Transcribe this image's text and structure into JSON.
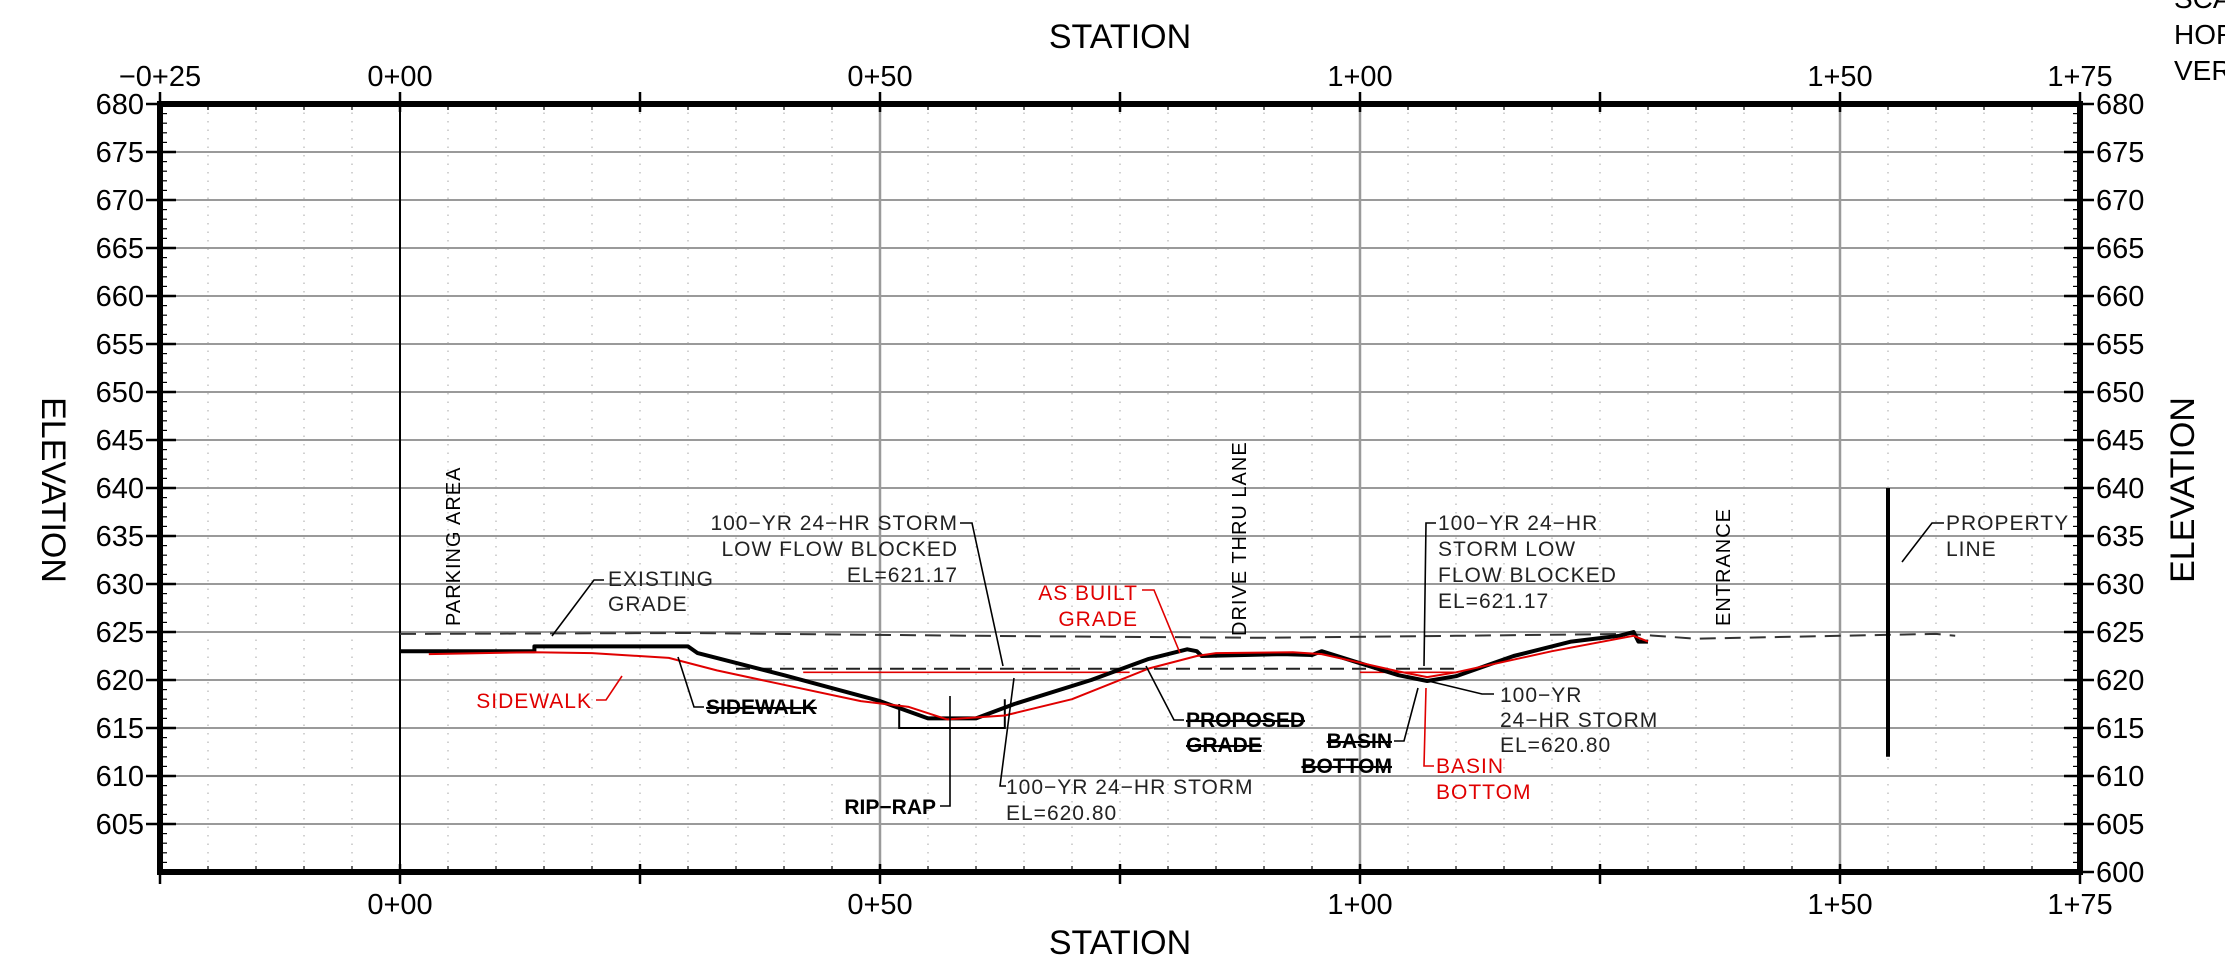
{
  "axes": {
    "station_title_top": "STATION",
    "station_title_bottom": "STATION",
    "elevation_title_left": "ELEVATION",
    "elevation_title_right": "ELEVATION",
    "top_station_ticks": [
      "−0+25",
      "0+00",
      "0+50",
      "1+00",
      "1+50",
      "1+75"
    ],
    "bottom_station_ticks": [
      "0+00",
      "0+50",
      "1+00",
      "1+50",
      "1+75"
    ],
    "left_elev_ticks": [
      "680",
      "675",
      "670",
      "665",
      "660",
      "655",
      "650",
      "645",
      "640",
      "635",
      "630",
      "625",
      "620",
      "615",
      "610",
      "605"
    ],
    "right_elev_ticks": [
      "680",
      "675",
      "670",
      "665",
      "660",
      "655",
      "650",
      "645",
      "640",
      "635",
      "630",
      "625",
      "620",
      "615",
      "610",
      "605",
      "600"
    ],
    "station_range": [
      -25,
      175
    ],
    "elevation_range": [
      600,
      680
    ]
  },
  "scale_note": [
    "SCA",
    "HOR",
    "VER"
  ],
  "vertical_labels": {
    "parking_area": "PARKING AREA",
    "drive_thru_lane": "DRIVE THRU LANE",
    "entrance": "ENTRANCE"
  },
  "callouts": {
    "existing_grade": [
      "EXISTING",
      "GRADE"
    ],
    "storm_blocked_left": [
      "100−YR 24−HR STORM",
      "LOW FLOW BLOCKED",
      "EL=621.17"
    ],
    "storm_blocked_right": [
      "100−YR 24−HR",
      "STORM LOW",
      "FLOW BLOCKED",
      "EL=621.17"
    ],
    "as_built_grade": [
      "AS BUILT",
      "GRADE"
    ],
    "property_line": [
      "PROPERTY",
      "LINE"
    ],
    "sidewalk_red": "SIDEWALK",
    "sidewalk_black": "SIDEWALK",
    "proposed_grade": [
      "PROPOSED",
      "GRADE"
    ],
    "basin_bottom_black": [
      "BASIN",
      "BOTTOM"
    ],
    "basin_bottom_red": [
      "BASIN",
      "BOTTOM"
    ],
    "storm_right": [
      "100−YR",
      "24−HR STORM",
      "EL=620.80"
    ],
    "rip_rap": "RIP−RAP",
    "storm_bottom": [
      "100−YR 24−HR STORM",
      "EL=620.80"
    ]
  },
  "profiles": {
    "existing_grade": [
      [
        0,
        624.8
      ],
      [
        30,
        624.9
      ],
      [
        60,
        624.6
      ],
      [
        90,
        624.4
      ],
      [
        110,
        624.6
      ],
      [
        128,
        624.8
      ],
      [
        135,
        624.3
      ],
      [
        160,
        624.8
      ],
      [
        162,
        624.6
      ]
    ],
    "proposed_grade": [
      [
        0,
        623.0
      ],
      [
        14,
        623.0
      ],
      [
        14,
        623.5
      ],
      [
        30,
        623.5
      ],
      [
        31,
        622.8
      ],
      [
        40,
        620.5
      ],
      [
        50,
        617.8
      ],
      [
        55,
        616.0
      ],
      [
        60,
        616.0
      ],
      [
        64,
        617.5
      ],
      [
        72,
        620.0
      ],
      [
        78,
        622.2
      ],
      [
        82,
        623.2
      ],
      [
        83,
        623.0
      ],
      [
        83.5,
        622.5
      ],
      [
        92,
        622.7
      ],
      [
        95,
        622.6
      ],
      [
        96,
        623.0
      ],
      [
        104,
        620.5
      ],
      [
        107,
        619.9
      ],
      [
        110,
        620.4
      ],
      [
        116,
        622.5
      ],
      [
        122,
        624.0
      ],
      [
        127,
        624.6
      ],
      [
        128.5,
        625.0
      ],
      [
        129,
        624.0
      ],
      [
        130,
        624.0
      ]
    ],
    "as_built_grade": [
      [
        3,
        622.7
      ],
      [
        14,
        622.9
      ],
      [
        20,
        622.8
      ],
      [
        28,
        622.3
      ],
      [
        33,
        621.0
      ],
      [
        40,
        619.5
      ],
      [
        48,
        617.8
      ],
      [
        53,
        617.2
      ],
      [
        57,
        615.9
      ],
      [
        63,
        616.3
      ],
      [
        70,
        618.0
      ],
      [
        78,
        621.2
      ],
      [
        83,
        622.5
      ],
      [
        85,
        622.8
      ],
      [
        93,
        622.9
      ],
      [
        96,
        622.7
      ],
      [
        100,
        621.8
      ],
      [
        104,
        620.9
      ],
      [
        107,
        620.3
      ],
      [
        110,
        620.8
      ],
      [
        120,
        623.0
      ],
      [
        128.5,
        624.6
      ],
      [
        130,
        624.0
      ]
    ],
    "blocked_flow_el": 621.17,
    "storm_el": 620.8
  },
  "colors": {
    "as_built": "#e00000",
    "proposed": "#000000",
    "grid_major": "#9a9a9a",
    "grid_minor": "#b5b5b5"
  }
}
